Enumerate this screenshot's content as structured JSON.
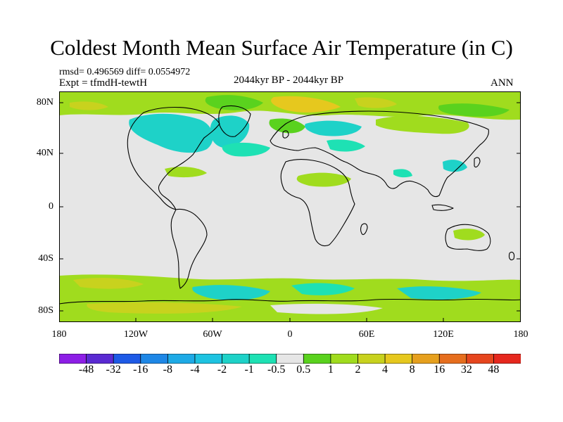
{
  "title": "Coldest Month Mean Surface Air Temperature (in C)",
  "stats_line": "rmsd= 0.496569  diff= 0.0554972",
  "expt_line": "Expt = tfmdH-tewtH",
  "center_label": "2044kyr BP - 2044kyr BP",
  "right_label": "ANN",
  "lat_labels": [
    "80N",
    "40N",
    "0",
    "40S",
    "80S"
  ],
  "lon_labels": [
    "180",
    "120W",
    "60W",
    "0",
    "60E",
    "120E",
    "180"
  ],
  "colorbar": {
    "labels": [
      "-48",
      "-32",
      "-16",
      "-8",
      "-4",
      "-2",
      "-1",
      "-0.5",
      "0.5",
      "1",
      "2",
      "4",
      "8",
      "16",
      "32",
      "48"
    ],
    "colors": [
      "#8d1ee6",
      "#5a2ad2",
      "#1e5ae6",
      "#1e87e6",
      "#1eaae6",
      "#1ec3e1",
      "#1ed2c8",
      "#1ee1b4",
      "#e6e6e6",
      "#5ad21e",
      "#a0dc1e",
      "#c8d21e",
      "#e6c81e",
      "#e6a01e",
      "#e66e1e",
      "#e6461e",
      "#e6281e"
    ]
  },
  "palette": {
    "neutral": "#e6e6e6",
    "cyan": "#1ed2c8",
    "teal": "#1ee1b4",
    "lightgreen": "#a0dc1e",
    "green": "#5ad21e",
    "yellowgreen": "#c8d21e",
    "gold": "#e6c81e"
  }
}
